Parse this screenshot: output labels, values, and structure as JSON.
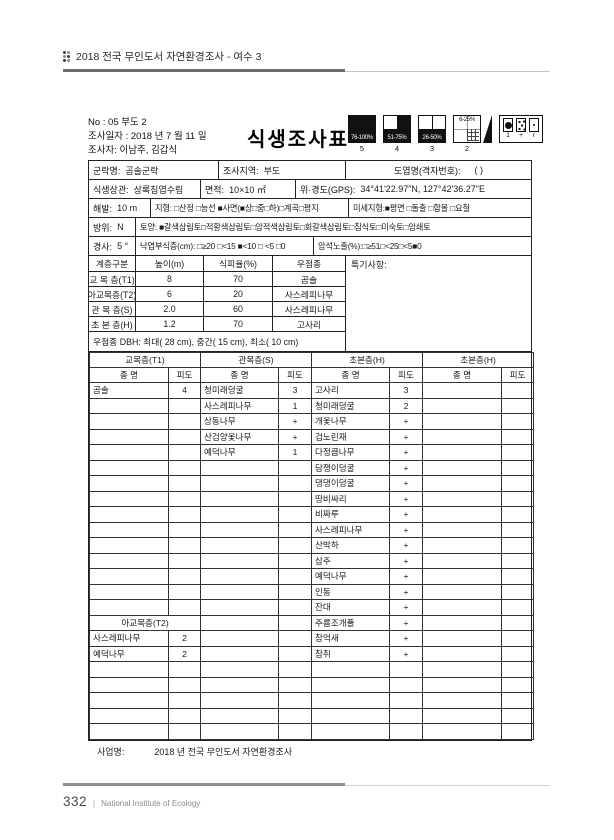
{
  "page_header": {
    "title": "2018 전국 무인도서 자연환경조사 - 여수 3"
  },
  "doc_info": {
    "no_line": "No : 05 부도 2",
    "date_line": "조사일자 : 2018 년 7 월 11 일",
    "surveyor_line": "조사자: 이남주, 김갑식",
    "form_title": "식생조사표"
  },
  "legend": {
    "classes": [
      {
        "label": "76-100%",
        "number": "5",
        "fill": "full"
      },
      {
        "label": "51-75%",
        "number": "4",
        "fill": "three-quarter"
      },
      {
        "label": "26-50%",
        "number": "3",
        "fill": "half"
      },
      {
        "label": "6-25%",
        "number": "2",
        "fill": "quarter-grid"
      }
    ],
    "dot_box": [
      {
        "symbol": "large-dot",
        "label": "1"
      },
      {
        "symbol": "scattered-dots",
        "label": "+"
      },
      {
        "symbol": "small-dot",
        "label": "r"
      }
    ]
  },
  "site": {
    "community_label": "군락명:",
    "community": "곰솔군락",
    "region_label": "조사지역:",
    "region": "부도",
    "map_label": "도엽명(격자번호):",
    "map_value": "(    )",
    "physiognomy_label": "식생상관:",
    "physiognomy": "상록침엽수림",
    "plot_label": "면적:",
    "plot": "10×10 ㎡",
    "gps_label": "위·경도(GPS):",
    "gps": "34°41'22.97\"N, 127°42'36.27\"E",
    "altitude_label": "해발:",
    "altitude": "10 m",
    "topo_full": "지형: □산정 □능선 ■사면(■상□중□하)□계곡□평지",
    "micro_full": "미세지형:■평면 □돌출 □함몰 □요철",
    "aspect_label": "방위:",
    "aspect": "N",
    "soil_full": "토양: ■갈색삼림토□적황색삼림토□암적색삼림토□회갈색삼림토□침식토□미숙토□암쇄토",
    "slope_label": "경사:",
    "slope": "5 °",
    "litter_full": "낙엽부식층(cm): □≥20 □<15 ■<10 □ <5 □0",
    "rock_full": "암석노출(%):□≥51□<25□<5■0"
  },
  "layer_table": {
    "headers": [
      "계층구분",
      "높이(m)",
      "식피율(%)",
      "우점종"
    ],
    "rows": [
      [
        "교 목 층(T1)",
        "8",
        "70",
        "곰솔"
      ],
      [
        "아교목층(T2)",
        "6",
        "20",
        "사스레피나무"
      ],
      [
        "관 목 층(S)",
        "2.0",
        "60",
        "사스레피나무"
      ],
      [
        "초 본 층(H)",
        "1.2",
        "70",
        "고사리"
      ]
    ],
    "dbh_line": "우점종 DBH: 최대( 28 cm), 중간( 15 cm), 최소( 10 cm)",
    "notes_label": "특기사항:"
  },
  "species_table": {
    "group_headers": [
      "교목층(T1)",
      "관목층(S)",
      "초본층(H)",
      "초본층(H)"
    ],
    "name_header": "종 명",
    "cover_header": "피도",
    "t2_header": "아교목층(T2)",
    "t2_header_row": 15,
    "rows": [
      [
        "곰솔",
        "4",
        "청미래덩굴",
        "3",
        "고사리",
        "3",
        "",
        ""
      ],
      [
        "",
        "",
        "사스레피나무",
        "1",
        "청미래덩굴",
        "2",
        "",
        ""
      ],
      [
        "",
        "",
        "상동나무",
        "+",
        "개옻나무",
        "+",
        "",
        ""
      ],
      [
        "",
        "",
        "산검양옻나무",
        "+",
        "검노린재",
        "+",
        "",
        ""
      ],
      [
        "",
        "",
        "예덕나무",
        "1",
        "다정큼나무",
        "+",
        "",
        ""
      ],
      [
        "",
        "",
        "",
        "",
        "담쟁이덩굴",
        "+",
        "",
        ""
      ],
      [
        "",
        "",
        "",
        "",
        "댕댕이덩굴",
        "+",
        "",
        ""
      ],
      [
        "",
        "",
        "",
        "",
        "땅비싸리",
        "+",
        "",
        ""
      ],
      [
        "",
        "",
        "",
        "",
        "비짜루",
        "+",
        "",
        ""
      ],
      [
        "",
        "",
        "",
        "",
        "사스레피나무",
        "+",
        "",
        ""
      ],
      [
        "",
        "",
        "",
        "",
        "산박하",
        "+",
        "",
        ""
      ],
      [
        "",
        "",
        "",
        "",
        "삽주",
        "+",
        "",
        ""
      ],
      [
        "",
        "",
        "",
        "",
        "예덕나무",
        "+",
        "",
        ""
      ],
      [
        "",
        "",
        "",
        "",
        "인동",
        "+",
        "",
        ""
      ],
      [
        "",
        "",
        "",
        "",
        "잔대",
        "+",
        "",
        ""
      ],
      [
        "",
        "",
        "",
        "",
        "주름조개풀",
        "+",
        "",
        ""
      ],
      [
        "사스레피나무",
        "2",
        "",
        "",
        "참억새",
        "+",
        "",
        ""
      ],
      [
        "예덕나무",
        "2",
        "",
        "",
        "참취",
        "+",
        "",
        ""
      ],
      [
        "",
        "",
        "",
        "",
        "",
        "",
        "",
        ""
      ],
      [
        "",
        "",
        "",
        "",
        "",
        "",
        "",
        ""
      ],
      [
        "",
        "",
        "",
        "",
        "",
        "",
        "",
        ""
      ],
      [
        "",
        "",
        "",
        "",
        "",
        "",
        "",
        ""
      ],
      [
        "",
        "",
        "",
        "",
        "",
        "",
        "",
        ""
      ]
    ]
  },
  "project": {
    "label": "사업명:",
    "value": "2018 년 전국 무인도서 자연환경조사"
  },
  "page_footer": {
    "page_number": "332",
    "separator": "|",
    "institute": "National Institute of Ecology"
  }
}
